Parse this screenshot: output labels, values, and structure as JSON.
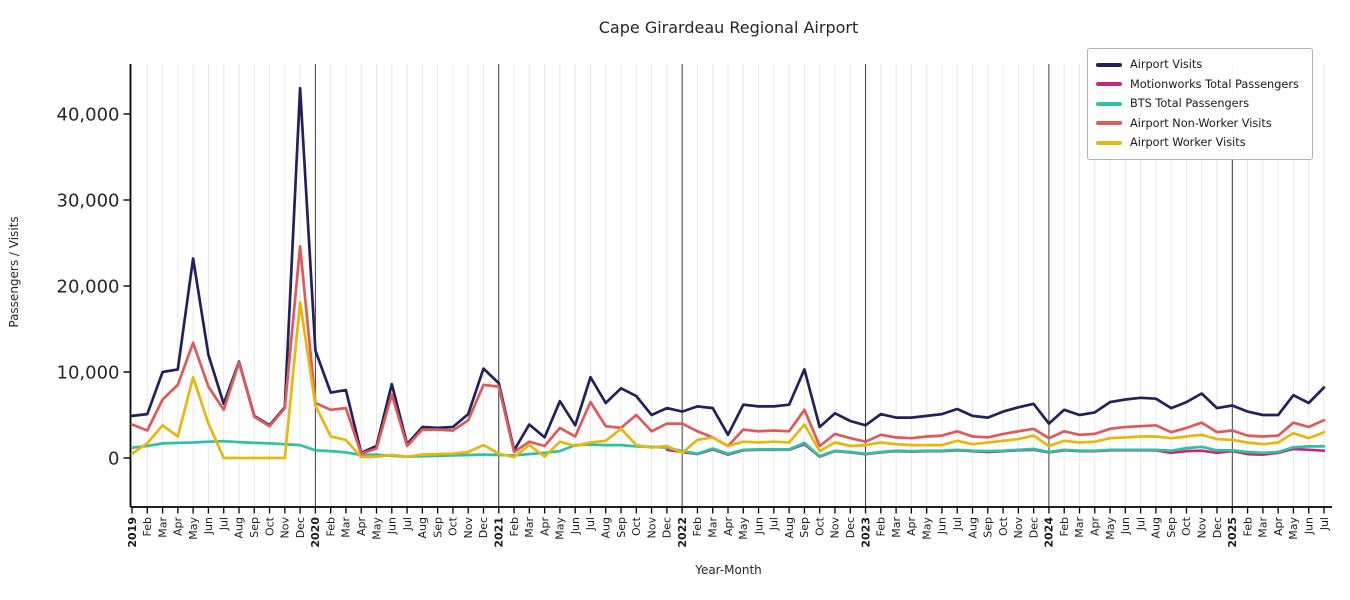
{
  "chart_data": {
    "type": "line",
    "title": "Cape Girardeau Regional Airport",
    "xlabel": "Year-Month",
    "ylabel": "Passengers / Visits",
    "figure_bg": "#ffffff",
    "grid": "vertical gridline at every month, dark vertical line at each January (year boundary), no horizontal gridlines",
    "legend_position": "upper right",
    "ylim": [
      -5500,
      45800
    ],
    "yticks": [
      0,
      10000,
      20000,
      30000,
      40000
    ],
    "x_tick_labels": [
      "2019",
      "Feb",
      "Mar",
      "Apr",
      "May",
      "Jun",
      "Jul",
      "Aug",
      "Sep",
      "Oct",
      "Nov",
      "Dec",
      "2020",
      "Feb",
      "Mar",
      "Apr",
      "May",
      "Jun",
      "Jul",
      "Aug",
      "Sep",
      "Oct",
      "Nov",
      "Dec",
      "2021",
      "Feb",
      "Mar",
      "Apr",
      "May",
      "Jun",
      "Jul",
      "Aug",
      "Sep",
      "Oct",
      "Nov",
      "Dec",
      "2022",
      "Feb",
      "Mar",
      "Apr",
      "May",
      "Jun",
      "Jul",
      "Aug",
      "Sep",
      "Oct",
      "Nov",
      "Dec",
      "2023",
      "Feb",
      "Mar",
      "Apr",
      "May",
      "Jun",
      "Jul",
      "Aug",
      "Sep",
      "Oct",
      "Nov",
      "Dec",
      "2024",
      "Feb",
      "Mar",
      "Apr",
      "May",
      "Jun",
      "Jul",
      "Aug",
      "Sep",
      "Oct",
      "Nov",
      "Dec",
      "2025",
      "Feb",
      "Mar",
      "Apr",
      "May",
      "Jun",
      "Jul"
    ],
    "series": [
      {
        "name": "Airport Visits",
        "color": "#23205f",
        "values": [
          4900,
          5100,
          10000,
          10300,
          23200,
          12000,
          6300,
          11200,
          4900,
          3800,
          5900,
          43000,
          12500,
          7600,
          7900,
          600,
          1400,
          8600,
          1600,
          3600,
          3500,
          3600,
          5100,
          10400,
          8700,
          900,
          3900,
          2400,
          6600,
          3800,
          9400,
          6400,
          8100,
          7200,
          5000,
          5800,
          5400,
          6000,
          5800,
          2700,
          6200,
          6000,
          6000,
          6200,
          10300,
          3600,
          5200,
          4300,
          3800,
          5100,
          4700,
          4700,
          4900,
          5100,
          5700,
          4900,
          4700,
          5400,
          5900,
          6300,
          4000,
          5600,
          5000,
          5300,
          6500,
          6800,
          7000,
          6900,
          5800,
          6500,
          7500,
          5800,
          6100,
          5400,
          5000,
          5000,
          7300,
          6400,
          8200
        ]
      },
      {
        "name": "Motionworks Total Passengers",
        "color": "#c92582",
        "values": [
          null,
          null,
          null,
          null,
          null,
          null,
          null,
          null,
          null,
          null,
          null,
          null,
          null,
          null,
          null,
          null,
          null,
          null,
          null,
          null,
          null,
          null,
          null,
          null,
          null,
          null,
          null,
          null,
          null,
          null,
          null,
          null,
          null,
          null,
          null,
          950,
          700,
          450,
          1000,
          400,
          900,
          950,
          950,
          950,
          1600,
          150,
          800,
          650,
          450,
          650,
          800,
          750,
          800,
          800,
          900,
          800,
          700,
          800,
          900,
          950,
          650,
          900,
          800,
          800,
          900,
          900,
          900,
          900,
          600,
          800,
          850,
          600,
          800,
          450,
          400,
          600,
          1050,
          950,
          850
        ]
      },
      {
        "name": "BTS Total Passengers",
        "color": "#2dc2a3",
        "values": [
          1200,
          1400,
          1700,
          1750,
          1800,
          1900,
          1950,
          1850,
          1750,
          1700,
          1600,
          1500,
          900,
          800,
          650,
          350,
          400,
          250,
          150,
          200,
          250,
          300,
          350,
          400,
          350,
          300,
          450,
          600,
          800,
          1500,
          1550,
          1500,
          1500,
          1350,
          1300,
          1200,
          800,
          500,
          1100,
          500,
          950,
          1000,
          1000,
          1000,
          1750,
          200,
          850,
          700,
          500,
          700,
          850,
          800,
          850,
          850,
          950,
          850,
          800,
          850,
          950,
          1050,
          700,
          950,
          850,
          850,
          950,
          950,
          950,
          950,
          850,
          1150,
          1300,
          900,
          900,
          700,
          600,
          700,
          1250,
          1350,
          1350
        ]
      },
      {
        "name": "Airport Non-Worker Visits",
        "color": "#e0595a",
        "values": [
          3900,
          3200,
          6800,
          8500,
          13400,
          8300,
          5600,
          11100,
          4800,
          3700,
          5800,
          24600,
          6400,
          5600,
          5800,
          500,
          1100,
          7400,
          1400,
          3300,
          3300,
          3200,
          4400,
          8500,
          8300,
          700,
          1900,
          1400,
          3500,
          2500,
          6500,
          3700,
          3500,
          5000,
          3100,
          4000,
          4000,
          3100,
          2400,
          1400,
          3300,
          3100,
          3200,
          3100,
          5600,
          1400,
          2800,
          2300,
          1900,
          2700,
          2400,
          2300,
          2500,
          2600,
          3100,
          2500,
          2400,
          2800,
          3100,
          3400,
          2300,
          3100,
          2700,
          2800,
          3400,
          3600,
          3700,
          3800,
          3000,
          3500,
          4100,
          3000,
          3200,
          2600,
          2500,
          2600,
          4100,
          3600,
          4400
        ]
      },
      {
        "name": "Airport Worker Visits",
        "color": "#e6b70e",
        "values": [
          500,
          1700,
          3800,
          2500,
          9400,
          4000,
          0,
          0,
          0,
          0,
          0,
          18100,
          6100,
          2500,
          2100,
          100,
          150,
          350,
          150,
          400,
          450,
          500,
          700,
          1500,
          500,
          100,
          1500,
          150,
          1900,
          1400,
          1800,
          2000,
          3400,
          1500,
          1200,
          1400,
          600,
          2100,
          2400,
          1400,
          1900,
          1800,
          1900,
          1800,
          3900,
          800,
          1800,
          1400,
          1500,
          1800,
          1600,
          1500,
          1500,
          1500,
          2000,
          1600,
          1800,
          2000,
          2200,
          2600,
          1400,
          2000,
          1800,
          1900,
          2300,
          2400,
          2500,
          2500,
          2300,
          2500,
          2700,
          2200,
          2100,
          1800,
          1600,
          1800,
          2900,
          2300,
          3000
        ]
      }
    ]
  }
}
